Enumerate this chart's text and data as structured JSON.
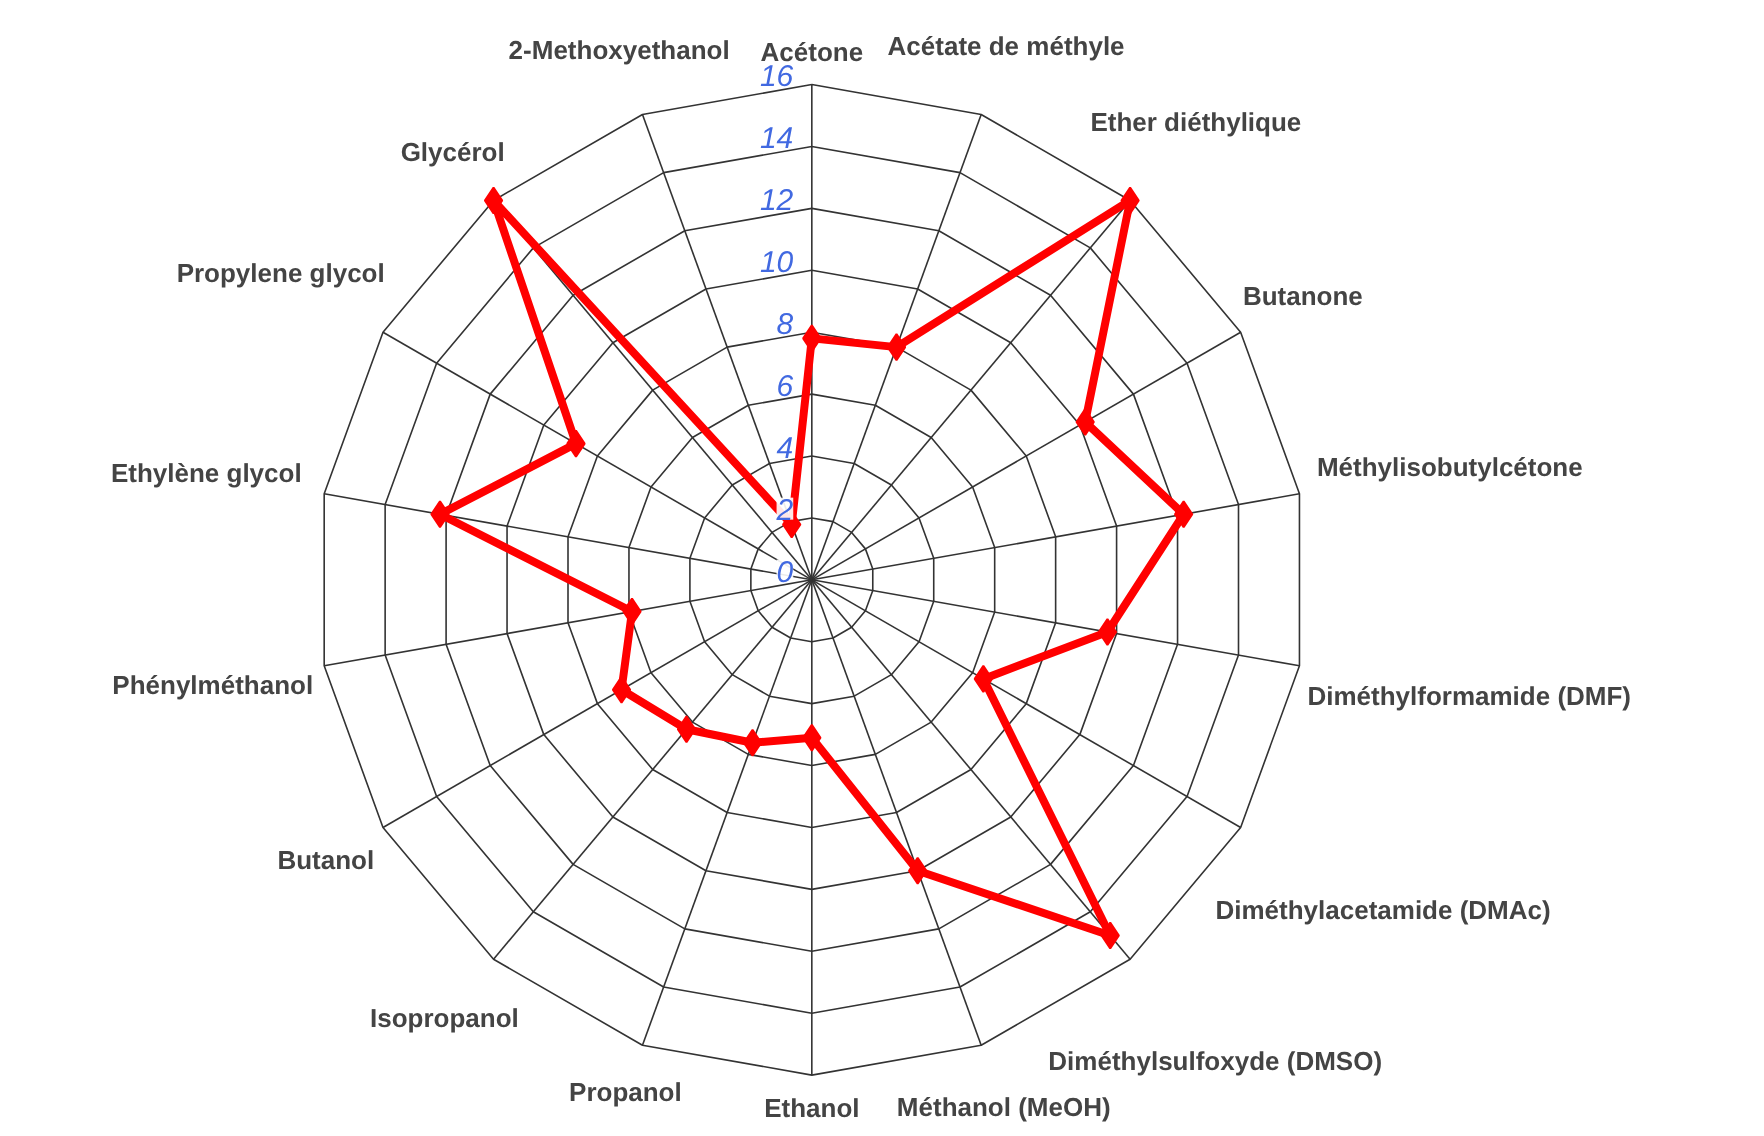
{
  "chart_data": {
    "type": "radar",
    "categories": [
      "Acétone",
      "Acétate de méthyle",
      "Ether diéthylique",
      "Butanone",
      "Méthylisobutylcétone",
      "Diméthylformamide (DMF)",
      "Diméthylacetamide (DMAc)",
      "Diméthylsulfoxyde (DMSO)",
      "Méthanol (MeOH)",
      "Ethanol",
      "Propanol",
      "Isopropanol",
      "Butanol",
      "Phénylméthanol",
      "Ethylène glycol",
      "Propylene glycol",
      "Glycérol",
      "2-Methoxyethanol"
    ],
    "series": [
      {
        "color": "#ff0000",
        "values": [
          7.8,
          8,
          16,
          10.2,
          12.2,
          9.7,
          6.4,
          15,
          10,
          5.1,
          5.6,
          6.3,
          7.1,
          5.9,
          12.2,
          8.8,
          16,
          1.9
        ]
      }
    ],
    "ylim": [
      0,
      16
    ],
    "yticks": [
      0,
      2,
      4,
      6,
      8,
      10,
      12,
      14,
      16
    ],
    "grid": true,
    "marker": "diamond",
    "line_style": "solid"
  }
}
